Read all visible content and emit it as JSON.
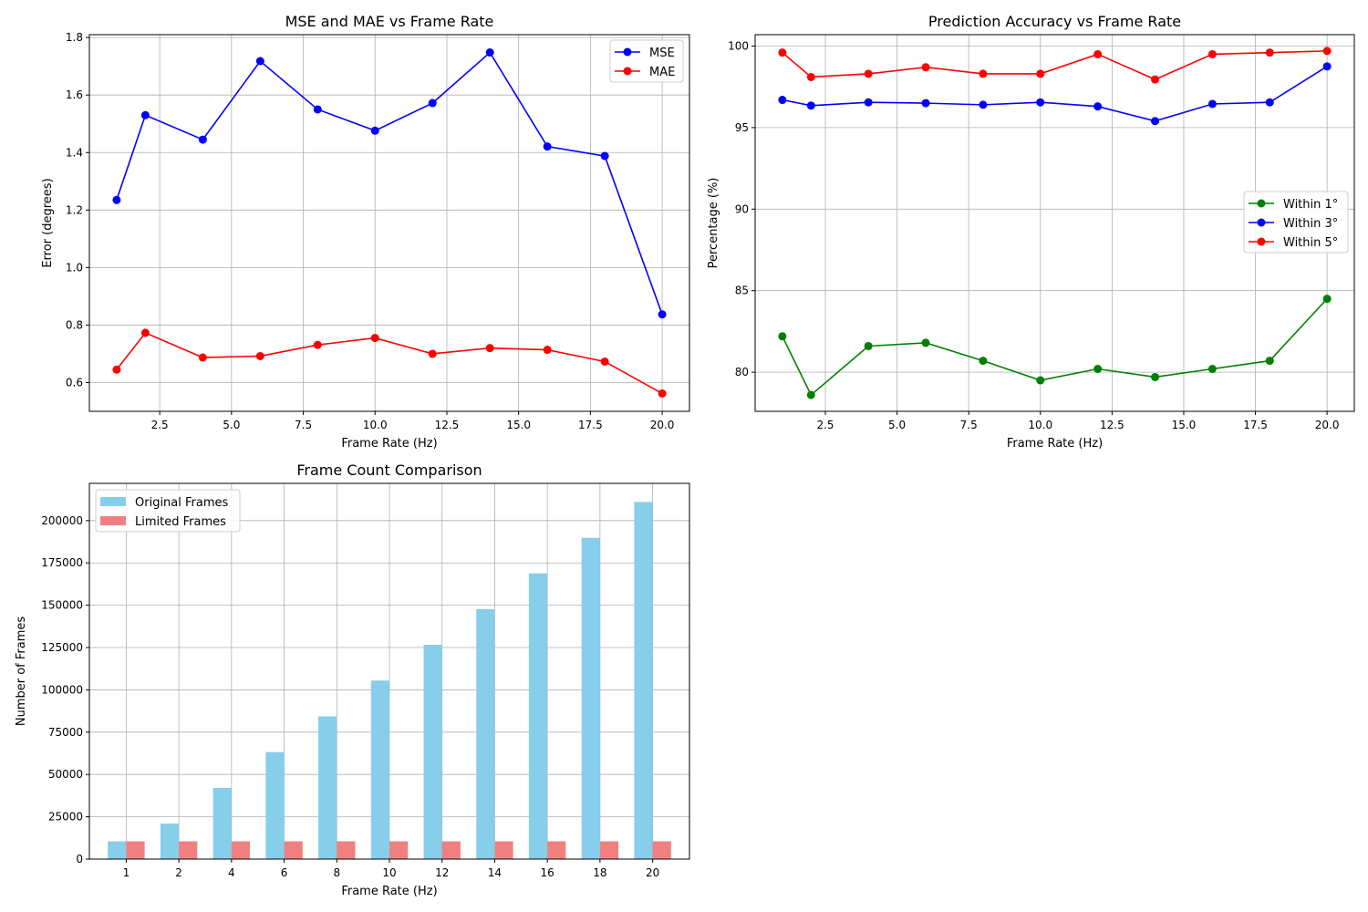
{
  "chart_data": [
    {
      "type": "line",
      "title": "MSE and MAE vs Frame Rate",
      "xlabel": "Frame Rate (Hz)",
      "ylabel": "Error (degrees)",
      "xlim": [
        0.05,
        20.95
      ],
      "ylim": [
        0.5,
        1.81
      ],
      "xticks": [
        2.5,
        5.0,
        7.5,
        10.0,
        12.5,
        15.0,
        17.5,
        20.0
      ],
      "xtick_labels": [
        "2.5",
        "5.0",
        "7.5",
        "10.0",
        "12.5",
        "15.0",
        "17.5",
        "20.0"
      ],
      "yticks": [
        0.6,
        0.8,
        1.0,
        1.2,
        1.4,
        1.6,
        1.8
      ],
      "ytick_labels": [
        "0.6",
        "0.8",
        "1.0",
        "1.2",
        "1.4",
        "1.6",
        "1.8"
      ],
      "grid": true,
      "legend": "top-right",
      "x": [
        1,
        2,
        4,
        6,
        8,
        10,
        12,
        14,
        16,
        18,
        20
      ],
      "series": [
        {
          "name": "MSE",
          "color": "#0000ff",
          "values": [
            1.235,
            1.53,
            1.445,
            1.718,
            1.55,
            1.476,
            1.572,
            1.748,
            1.421,
            1.388,
            0.837
          ]
        },
        {
          "name": "MAE",
          "color": "#ff0000",
          "values": [
            0.645,
            0.773,
            0.687,
            0.692,
            0.731,
            0.755,
            0.7,
            0.72,
            0.714,
            0.673,
            0.562
          ]
        }
      ]
    },
    {
      "type": "line",
      "title": "Prediction Accuracy vs Frame Rate",
      "xlabel": "Frame Rate (Hz)",
      "ylabel": "Percentage (%)",
      "xlim": [
        0.05,
        20.95
      ],
      "ylim": [
        77.6,
        100.7
      ],
      "xticks": [
        2.5,
        5.0,
        7.5,
        10.0,
        12.5,
        15.0,
        17.5,
        20.0
      ],
      "xtick_labels": [
        "2.5",
        "5.0",
        "7.5",
        "10.0",
        "12.5",
        "15.0",
        "17.5",
        "20.0"
      ],
      "yticks": [
        80,
        85,
        90,
        95,
        100
      ],
      "ytick_labels": [
        "80",
        "85",
        "90",
        "95",
        "100"
      ],
      "grid": true,
      "legend": "center-right",
      "x": [
        1,
        2,
        4,
        6,
        8,
        10,
        12,
        14,
        16,
        18,
        20
      ],
      "series": [
        {
          "name": "Within 1°",
          "color": "#008000",
          "values": [
            82.2,
            78.6,
            81.6,
            81.8,
            80.7,
            79.5,
            80.2,
            79.7,
            80.2,
            80.7,
            84.5
          ]
        },
        {
          "name": "Within 3°",
          "color": "#0000ff",
          "values": [
            96.7,
            96.35,
            96.55,
            96.5,
            96.4,
            96.55,
            96.3,
            95.4,
            96.45,
            96.55,
            98.75
          ]
        },
        {
          "name": "Within 5°",
          "color": "#ff0000",
          "values": [
            99.6,
            98.1,
            98.3,
            98.7,
            98.3,
            98.3,
            99.5,
            97.95,
            99.5,
            99.6,
            99.7
          ]
        }
      ]
    },
    {
      "type": "bar",
      "title": "Frame Count Comparison",
      "xlabel": "Frame Rate (Hz)",
      "ylabel": "Number of Frames",
      "ylim": [
        0,
        222000
      ],
      "yticks": [
        0,
        25000,
        50000,
        75000,
        100000,
        125000,
        150000,
        175000,
        200000
      ],
      "ytick_labels": [
        "0",
        "25000",
        "50000",
        "75000",
        "100000",
        "125000",
        "150000",
        "175000",
        "200000"
      ],
      "grid": true,
      "legend": "top-left",
      "categories": [
        "1",
        "2",
        "4",
        "6",
        "8",
        "10",
        "12",
        "14",
        "16",
        "18",
        "20"
      ],
      "series": [
        {
          "name": "Original Frames",
          "color": "#87ceeb",
          "values": [
            10500,
            21000,
            42100,
            63200,
            84300,
            105500,
            126600,
            147700,
            168800,
            189800,
            211000
          ]
        },
        {
          "name": "Limited Frames",
          "color": "#f08080",
          "values": [
            10500,
            10500,
            10500,
            10500,
            10500,
            10500,
            10500,
            10500,
            10500,
            10500,
            10500
          ]
        }
      ]
    }
  ]
}
